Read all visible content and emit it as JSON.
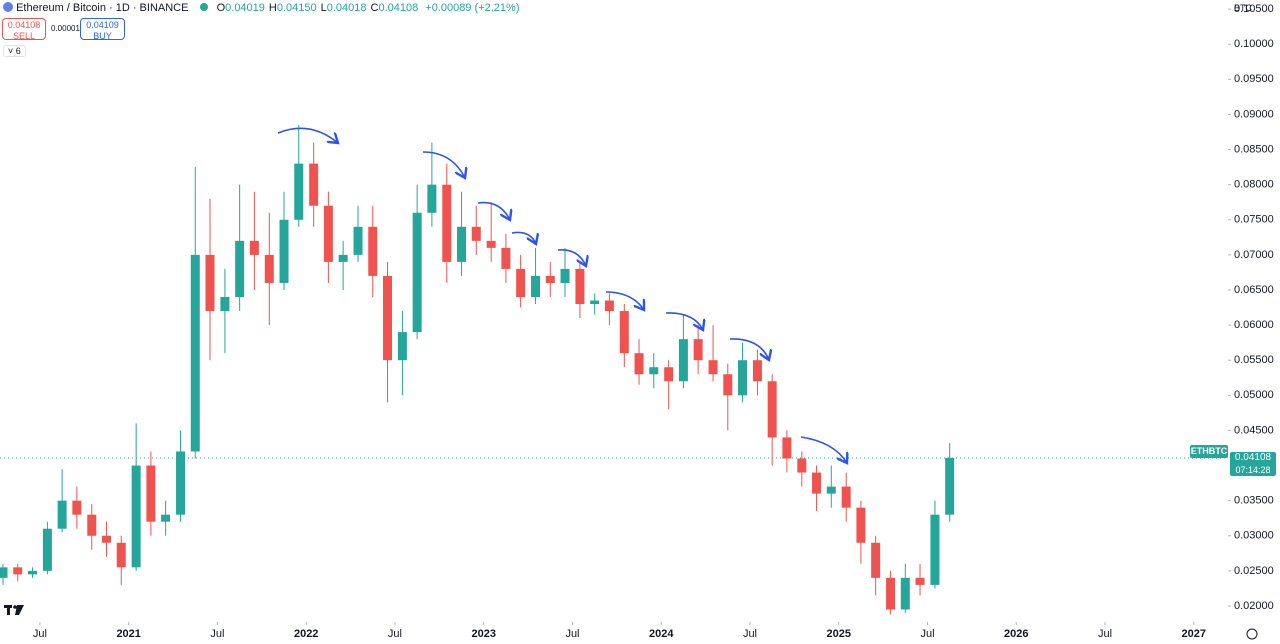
{
  "chart_data": {
    "type": "candlestick",
    "header": {
      "title": "Ethereum / Bitcoin · 1D · BINANCE",
      "ohlc": [
        {
          "label": "O",
          "value": "0.04019"
        },
        {
          "label": "H",
          "value": "0.04150"
        },
        {
          "label": "L",
          "value": "0.04018"
        },
        {
          "label": "C",
          "value": "0.04108"
        }
      ],
      "change": "+0.00089 (+2.21%)",
      "sell_price": "0.04108",
      "sell_label": "SELL",
      "spread": "0.00001",
      "buy_price": "0.04109",
      "buy_label": "BUY",
      "indicators": "6",
      "currency": "BTC",
      "symbol": "ETHBTC",
      "countdown": "07:14:28"
    },
    "last_price": 0.04108,
    "up_color": "#26a69a",
    "down_color": "#ef5350",
    "xlim": [
      2020.275,
      2027.176
    ],
    "xticks": [
      {
        "value": 2020.5,
        "label": "Jul"
      },
      {
        "value": 2021,
        "label": "2021"
      },
      {
        "value": 2021.5,
        "label": "Jul"
      },
      {
        "value": 2022,
        "label": "2022"
      },
      {
        "value": 2022.5,
        "label": "Jul"
      },
      {
        "value": 2023,
        "label": "2023"
      },
      {
        "value": 2023.5,
        "label": "Jul"
      },
      {
        "value": 2024,
        "label": "2024"
      },
      {
        "value": 2024.5,
        "label": "Jul"
      },
      {
        "value": 2025,
        "label": "2025"
      },
      {
        "value": 2025.5,
        "label": "Jul"
      },
      {
        "value": 2026,
        "label": "2026"
      },
      {
        "value": 2026.5,
        "label": "Jul"
      },
      {
        "value": 2027,
        "label": "2027"
      }
    ],
    "ylim": [
      0.018,
      0.1063
    ],
    "yticks": [
      {
        "value": 0.02,
        "label": "0.02000"
      },
      {
        "value": 0.025,
        "label": "0.02500"
      },
      {
        "value": 0.03,
        "label": "0.03000"
      },
      {
        "value": 0.035,
        "label": "0.03500"
      },
      {
        "value": 0.045,
        "label": "0.04500"
      },
      {
        "value": 0.05,
        "label": "0.05000"
      },
      {
        "value": 0.055,
        "label": "0.05500"
      },
      {
        "value": 0.06,
        "label": "0.06000"
      },
      {
        "value": 0.065,
        "label": "0.06500"
      },
      {
        "value": 0.07,
        "label": "0.07000"
      },
      {
        "value": 0.075,
        "label": "0.07500"
      },
      {
        "value": 0.08,
        "label": "0.08000"
      },
      {
        "value": 0.085,
        "label": "0.08500"
      },
      {
        "value": 0.09,
        "label": "0.09000"
      },
      {
        "value": 0.095,
        "label": "0.09500"
      },
      {
        "value": 0.1,
        "label": "0.10000"
      },
      {
        "value": 0.105,
        "label": "0.10500"
      }
    ],
    "candles": [
      {
        "x": 2020.292,
        "o": 0.024,
        "h": 0.026,
        "l": 0.023,
        "c": 0.0255
      },
      {
        "x": 2020.375,
        "o": 0.0255,
        "h": 0.026,
        "l": 0.0235,
        "c": 0.0245
      },
      {
        "x": 2020.458,
        "o": 0.0245,
        "h": 0.0255,
        "l": 0.024,
        "c": 0.025
      },
      {
        "x": 2020.542,
        "o": 0.025,
        "h": 0.032,
        "l": 0.0245,
        "c": 0.031
      },
      {
        "x": 2020.625,
        "o": 0.031,
        "h": 0.0395,
        "l": 0.0305,
        "c": 0.035
      },
      {
        "x": 2020.708,
        "o": 0.035,
        "h": 0.037,
        "l": 0.031,
        "c": 0.033
      },
      {
        "x": 2020.792,
        "o": 0.033,
        "h": 0.0345,
        "l": 0.028,
        "c": 0.03
      },
      {
        "x": 2020.875,
        "o": 0.03,
        "h": 0.032,
        "l": 0.027,
        "c": 0.029
      },
      {
        "x": 2020.958,
        "o": 0.029,
        "h": 0.03,
        "l": 0.023,
        "c": 0.0255
      },
      {
        "x": 2021.042,
        "o": 0.0255,
        "h": 0.046,
        "l": 0.025,
        "c": 0.04
      },
      {
        "x": 2021.125,
        "o": 0.04,
        "h": 0.042,
        "l": 0.03,
        "c": 0.032
      },
      {
        "x": 2021.208,
        "o": 0.032,
        "h": 0.035,
        "l": 0.03,
        "c": 0.033
      },
      {
        "x": 2021.292,
        "o": 0.033,
        "h": 0.045,
        "l": 0.032,
        "c": 0.042
      },
      {
        "x": 2021.375,
        "o": 0.042,
        "h": 0.0825,
        "l": 0.041,
        "c": 0.07
      },
      {
        "x": 2021.458,
        "o": 0.07,
        "h": 0.078,
        "l": 0.055,
        "c": 0.062
      },
      {
        "x": 2021.542,
        "o": 0.062,
        "h": 0.068,
        "l": 0.056,
        "c": 0.064
      },
      {
        "x": 2021.625,
        "o": 0.064,
        "h": 0.08,
        "l": 0.062,
        "c": 0.072
      },
      {
        "x": 2021.708,
        "o": 0.072,
        "h": 0.079,
        "l": 0.065,
        "c": 0.07
      },
      {
        "x": 2021.792,
        "o": 0.07,
        "h": 0.076,
        "l": 0.06,
        "c": 0.066
      },
      {
        "x": 2021.875,
        "o": 0.066,
        "h": 0.079,
        "l": 0.065,
        "c": 0.075
      },
      {
        "x": 2021.958,
        "o": 0.075,
        "h": 0.0885,
        "l": 0.074,
        "c": 0.083
      },
      {
        "x": 2022.042,
        "o": 0.083,
        "h": 0.086,
        "l": 0.074,
        "c": 0.077
      },
      {
        "x": 2022.125,
        "o": 0.077,
        "h": 0.079,
        "l": 0.066,
        "c": 0.069
      },
      {
        "x": 2022.208,
        "o": 0.069,
        "h": 0.072,
        "l": 0.065,
        "c": 0.07
      },
      {
        "x": 2022.292,
        "o": 0.07,
        "h": 0.077,
        "l": 0.069,
        "c": 0.074
      },
      {
        "x": 2022.375,
        "o": 0.074,
        "h": 0.077,
        "l": 0.064,
        "c": 0.067
      },
      {
        "x": 2022.458,
        "o": 0.067,
        "h": 0.069,
        "l": 0.049,
        "c": 0.055
      },
      {
        "x": 2022.542,
        "o": 0.055,
        "h": 0.062,
        "l": 0.05,
        "c": 0.059
      },
      {
        "x": 2022.625,
        "o": 0.059,
        "h": 0.08,
        "l": 0.058,
        "c": 0.076
      },
      {
        "x": 2022.708,
        "o": 0.076,
        "h": 0.086,
        "l": 0.074,
        "c": 0.08
      },
      {
        "x": 2022.792,
        "o": 0.08,
        "h": 0.083,
        "l": 0.066,
        "c": 0.069
      },
      {
        "x": 2022.875,
        "o": 0.069,
        "h": 0.079,
        "l": 0.067,
        "c": 0.074
      },
      {
        "x": 2022.958,
        "o": 0.074,
        "h": 0.077,
        "l": 0.07,
        "c": 0.072
      },
      {
        "x": 2023.042,
        "o": 0.072,
        "h": 0.0775,
        "l": 0.069,
        "c": 0.071
      },
      {
        "x": 2023.125,
        "o": 0.071,
        "h": 0.073,
        "l": 0.066,
        "c": 0.068
      },
      {
        "x": 2023.208,
        "o": 0.068,
        "h": 0.07,
        "l": 0.0625,
        "c": 0.064
      },
      {
        "x": 2023.292,
        "o": 0.064,
        "h": 0.071,
        "l": 0.063,
        "c": 0.067
      },
      {
        "x": 2023.375,
        "o": 0.067,
        "h": 0.069,
        "l": 0.064,
        "c": 0.066
      },
      {
        "x": 2023.458,
        "o": 0.066,
        "h": 0.071,
        "l": 0.064,
        "c": 0.068
      },
      {
        "x": 2023.542,
        "o": 0.068,
        "h": 0.069,
        "l": 0.061,
        "c": 0.063
      },
      {
        "x": 2023.625,
        "o": 0.063,
        "h": 0.0645,
        "l": 0.0615,
        "c": 0.0635
      },
      {
        "x": 2023.708,
        "o": 0.0635,
        "h": 0.0645,
        "l": 0.06,
        "c": 0.062
      },
      {
        "x": 2023.792,
        "o": 0.062,
        "h": 0.063,
        "l": 0.054,
        "c": 0.056
      },
      {
        "x": 2023.875,
        "o": 0.056,
        "h": 0.058,
        "l": 0.0515,
        "c": 0.053
      },
      {
        "x": 2023.958,
        "o": 0.053,
        "h": 0.056,
        "l": 0.051,
        "c": 0.054
      },
      {
        "x": 2024.042,
        "o": 0.054,
        "h": 0.055,
        "l": 0.048,
        "c": 0.052
      },
      {
        "x": 2024.125,
        "o": 0.052,
        "h": 0.0615,
        "l": 0.051,
        "c": 0.058
      },
      {
        "x": 2024.208,
        "o": 0.058,
        "h": 0.06,
        "l": 0.053,
        "c": 0.055
      },
      {
        "x": 2024.292,
        "o": 0.055,
        "h": 0.06,
        "l": 0.052,
        "c": 0.053
      },
      {
        "x": 2024.375,
        "o": 0.053,
        "h": 0.0545,
        "l": 0.045,
        "c": 0.05
      },
      {
        "x": 2024.458,
        "o": 0.05,
        "h": 0.0575,
        "l": 0.049,
        "c": 0.055
      },
      {
        "x": 2024.542,
        "o": 0.055,
        "h": 0.0565,
        "l": 0.05,
        "c": 0.052
      },
      {
        "x": 2024.625,
        "o": 0.052,
        "h": 0.053,
        "l": 0.04,
        "c": 0.044
      },
      {
        "x": 2024.708,
        "o": 0.044,
        "h": 0.045,
        "l": 0.039,
        "c": 0.041
      },
      {
        "x": 2024.792,
        "o": 0.041,
        "h": 0.042,
        "l": 0.037,
        "c": 0.039
      },
      {
        "x": 2024.875,
        "o": 0.039,
        "h": 0.04,
        "l": 0.0335,
        "c": 0.036
      },
      {
        "x": 2024.958,
        "o": 0.036,
        "h": 0.04,
        "l": 0.034,
        "c": 0.037
      },
      {
        "x": 2025.042,
        "o": 0.037,
        "h": 0.039,
        "l": 0.032,
        "c": 0.034
      },
      {
        "x": 2025.125,
        "o": 0.034,
        "h": 0.035,
        "l": 0.026,
        "c": 0.029
      },
      {
        "x": 2025.208,
        "o": 0.029,
        "h": 0.03,
        "l": 0.0215,
        "c": 0.024
      },
      {
        "x": 2025.292,
        "o": 0.024,
        "h": 0.025,
        "l": 0.0188,
        "c": 0.0195
      },
      {
        "x": 2025.375,
        "o": 0.0195,
        "h": 0.026,
        "l": 0.019,
        "c": 0.024
      },
      {
        "x": 2025.458,
        "o": 0.024,
        "h": 0.026,
        "l": 0.0215,
        "c": 0.023
      },
      {
        "x": 2025.542,
        "o": 0.023,
        "h": 0.035,
        "l": 0.0225,
        "c": 0.033
      },
      {
        "x": 2025.625,
        "o": 0.033,
        "h": 0.0432,
        "l": 0.032,
        "c": 0.0411
      }
    ]
  }
}
